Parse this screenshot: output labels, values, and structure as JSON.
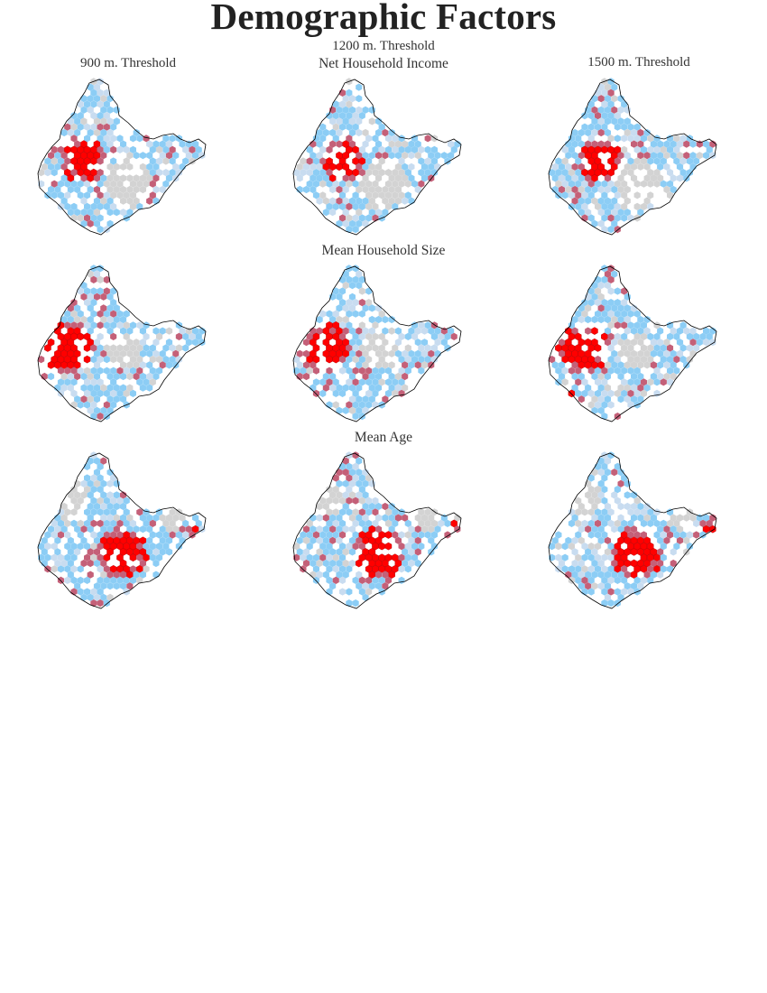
{
  "figure": {
    "title": "Demographic Factors",
    "columns": [
      "900 m. Threshold",
      "1200 m. Threshold",
      "1500 m. Threshold"
    ],
    "rows": [
      "Net Household Income",
      "Mean Household Size",
      "Mean Age"
    ]
  },
  "legend_colors": {
    "hot_spot_99": "#ff0000",
    "hot_spot_90": "#c46078",
    "not_significant": "#d3d3d3",
    "cold_spot_light": "#c8dcf0",
    "cold_spot": "#8ccdf5",
    "outline": "#000000"
  }
}
